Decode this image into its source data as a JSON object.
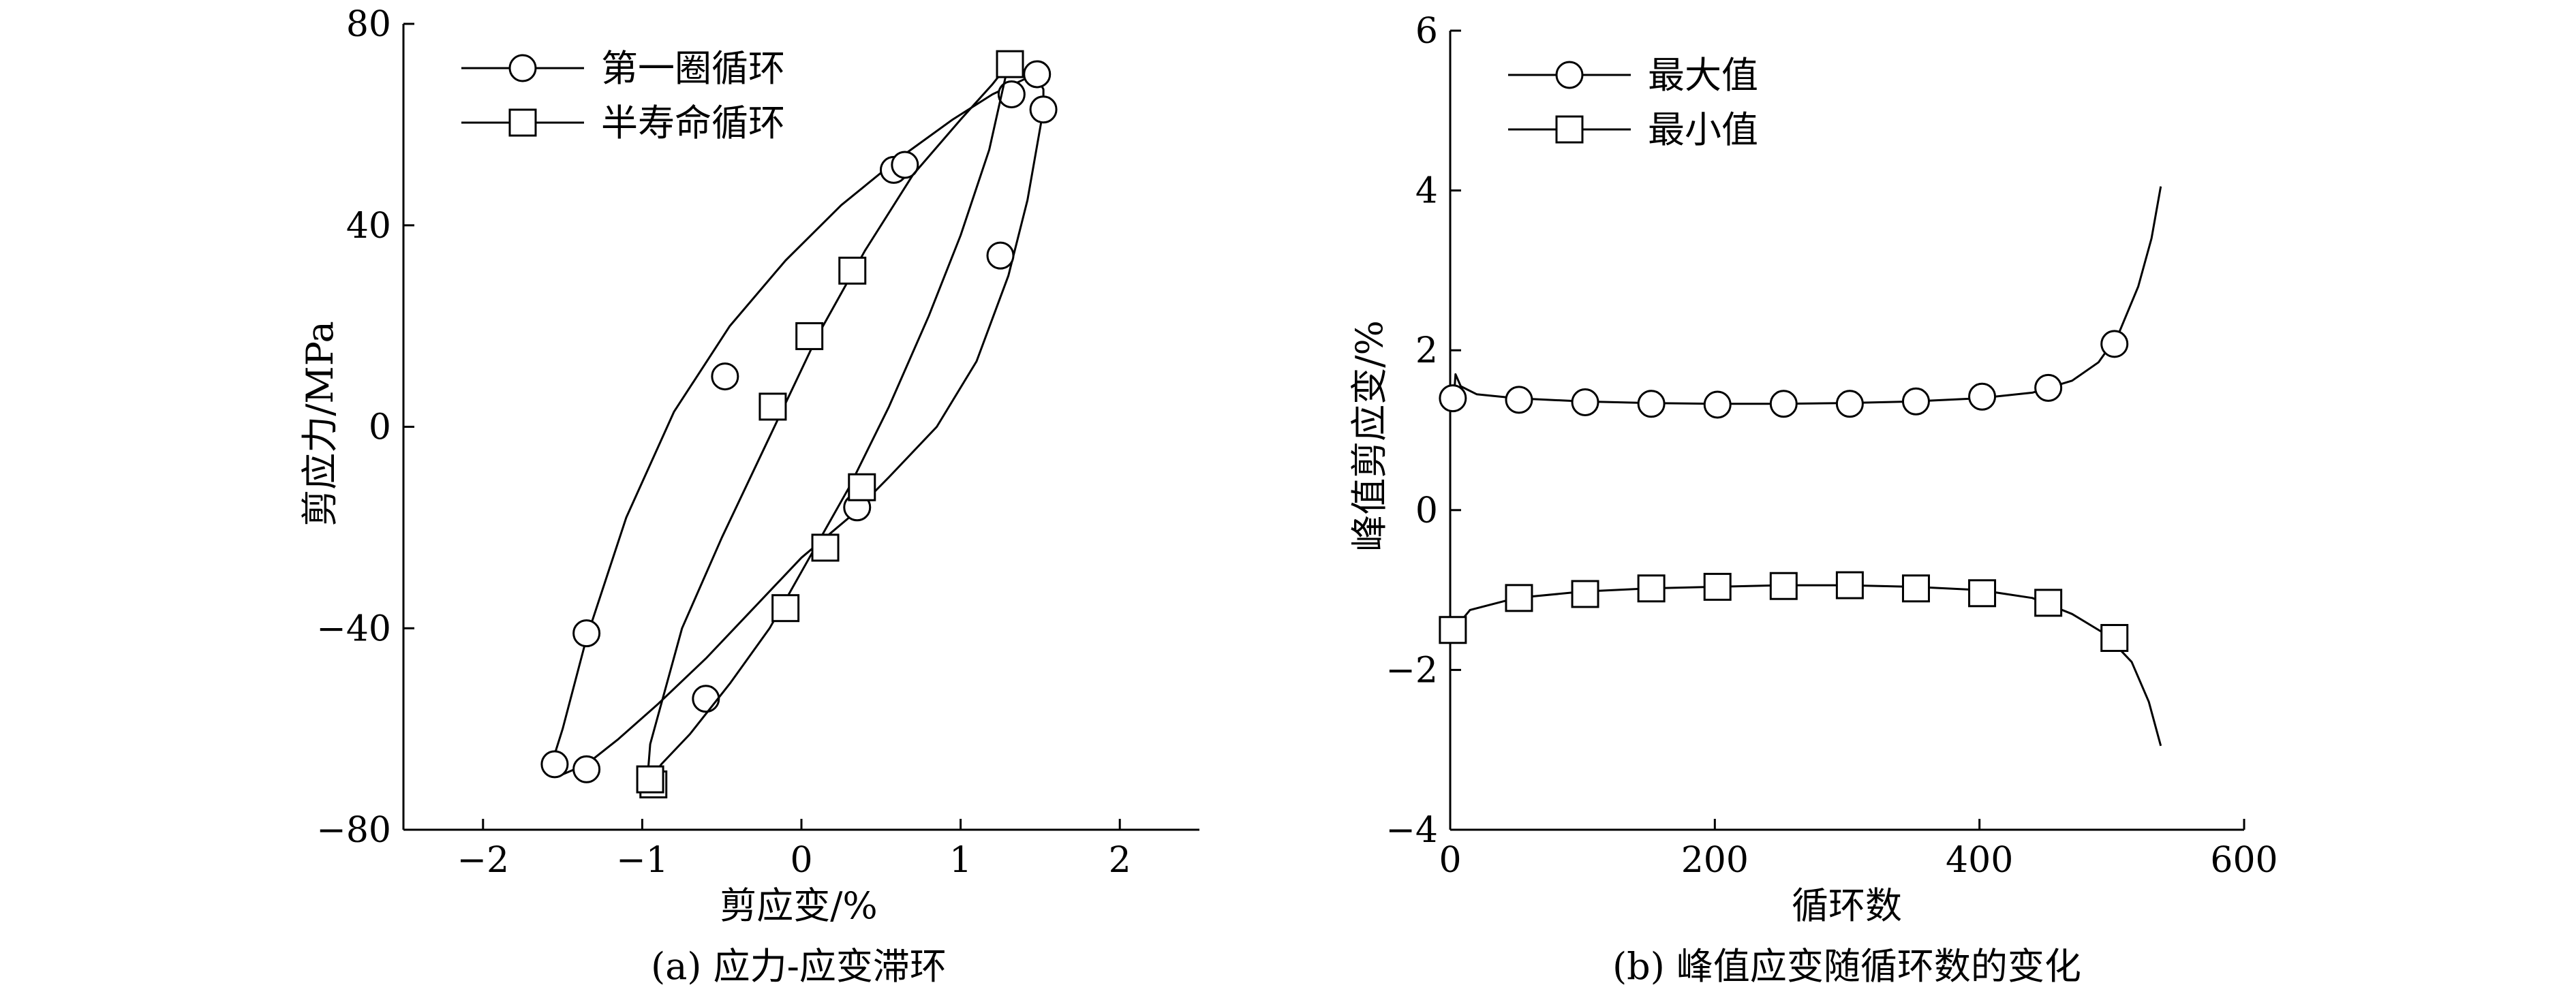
{
  "chart_data": [
    {
      "type": "line",
      "caption": "(a) 应力-应变滞环",
      "xlabel": "剪应变/%",
      "ylabel": "剪应力/MPa",
      "xlim": [
        -2.5,
        2.5
      ],
      "ylim": [
        -80,
        80
      ],
      "xticks": [
        -2,
        -1,
        0,
        1,
        2
      ],
      "yticks": [
        -80,
        -40,
        0,
        40,
        80
      ],
      "xtick_labels": [
        "−2",
        "−1",
        "0",
        "1",
        "2"
      ],
      "ytick_labels": [
        "−80",
        "−40",
        "0",
        "40",
        "80"
      ],
      "legend_position": "top-left",
      "series": [
        {
          "name": "第一圈循环",
          "marker": "circle",
          "curve": [
            [
              1.52,
              63
            ],
            [
              1.42,
              45
            ],
            [
              1.3,
              30
            ],
            [
              1.1,
              13
            ],
            [
              0.85,
              0
            ],
            [
              0.55,
              -10
            ],
            [
              0.3,
              -18
            ],
            [
              0.0,
              -26
            ],
            [
              -0.3,
              -36
            ],
            [
              -0.6,
              -46
            ],
            [
              -0.9,
              -55
            ],
            [
              -1.15,
              -62
            ],
            [
              -1.35,
              -67
            ],
            [
              -1.5,
              -69
            ],
            [
              -1.56,
              -66
            ],
            [
              -1.5,
              -60
            ],
            [
              -1.35,
              -42
            ],
            [
              -1.1,
              -18
            ],
            [
              -0.8,
              3
            ],
            [
              -0.45,
              20
            ],
            [
              -0.1,
              33
            ],
            [
              0.25,
              44
            ],
            [
              0.6,
              53
            ],
            [
              0.95,
              61
            ],
            [
              1.2,
              66
            ],
            [
              1.4,
              69
            ],
            [
              1.48,
              69.5
            ],
            [
              1.52,
              67
            ],
            [
              1.52,
              63
            ]
          ],
          "markers": [
            [
              1.48,
              70
            ],
            [
              1.52,
              63
            ],
            [
              1.25,
              34
            ],
            [
              0.35,
              -16
            ],
            [
              -0.6,
              -54
            ],
            [
              -1.35,
              -68
            ],
            [
              -1.55,
              -67
            ],
            [
              -1.35,
              -41
            ],
            [
              -0.48,
              10
            ],
            [
              0.58,
              51
            ],
            [
              0.65,
              52
            ],
            [
              1.32,
              66
            ]
          ]
        },
        {
          "name": "半寿命循环",
          "marker": "square",
          "curve": [
            [
              1.3,
              72
            ],
            [
              1.18,
              55
            ],
            [
              1.0,
              38
            ],
            [
              0.8,
              22
            ],
            [
              0.55,
              4
            ],
            [
              0.3,
              -12
            ],
            [
              0.05,
              -26
            ],
            [
              -0.2,
              -40
            ],
            [
              -0.45,
              -51
            ],
            [
              -0.7,
              -61
            ],
            [
              -0.88,
              -67
            ],
            [
              -0.97,
              -71
            ],
            [
              -0.95,
              -63
            ],
            [
              -0.75,
              -40
            ],
            [
              -0.5,
              -22
            ],
            [
              -0.2,
              -2
            ],
            [
              0.1,
              18
            ],
            [
              0.4,
              35
            ],
            [
              0.7,
              50
            ],
            [
              1.0,
              61
            ],
            [
              1.2,
              68
            ],
            [
              1.3,
              72
            ]
          ],
          "markers": [
            [
              1.31,
              72
            ],
            [
              0.38,
              -12
            ],
            [
              0.15,
              -24
            ],
            [
              -0.1,
              -36
            ],
            [
              -0.93,
              -71
            ],
            [
              -0.95,
              -70
            ],
            [
              -0.18,
              4
            ],
            [
              0.05,
              18
            ],
            [
              0.32,
              31
            ]
          ]
        }
      ]
    },
    {
      "type": "line",
      "caption": "(b) 峰值应变随循环数的变化",
      "xlabel": "循环数",
      "ylabel": "峰值剪应变/%",
      "xlim": [
        0,
        600
      ],
      "ylim": [
        -4,
        6
      ],
      "xticks": [
        0,
        200,
        400,
        600
      ],
      "yticks": [
        -4,
        -2,
        0,
        2,
        4,
        6
      ],
      "xtick_labels": [
        "0",
        "200",
        "400",
        "600"
      ],
      "ytick_labels": [
        "−4",
        "−2",
        "0",
        "2",
        "4",
        "6"
      ],
      "legend_position": "top-left",
      "series": [
        {
          "name": "最大值",
          "marker": "circle",
          "curve": [
            [
              3,
              1.45
            ],
            [
              4,
              1.7
            ],
            [
              8,
              1.55
            ],
            [
              20,
              1.45
            ],
            [
              50,
              1.4
            ],
            [
              100,
              1.36
            ],
            [
              150,
              1.34
            ],
            [
              200,
              1.33
            ],
            [
              250,
              1.33
            ],
            [
              300,
              1.34
            ],
            [
              350,
              1.36
            ],
            [
              400,
              1.4
            ],
            [
              440,
              1.47
            ],
            [
              470,
              1.62
            ],
            [
              490,
              1.85
            ],
            [
              505,
              2.2
            ],
            [
              520,
              2.8
            ],
            [
              530,
              3.4
            ],
            [
              537,
              4.05
            ]
          ],
          "markers": [
            [
              2,
              1.4
            ],
            [
              52,
              1.38
            ],
            [
              102,
              1.35
            ],
            [
              152,
              1.33
            ],
            [
              202,
              1.32
            ],
            [
              252,
              1.33
            ],
            [
              302,
              1.33
            ],
            [
              352,
              1.36
            ],
            [
              402,
              1.42
            ],
            [
              452,
              1.53
            ],
            [
              502,
              2.08
            ]
          ]
        },
        {
          "name": "最小值",
          "marker": "square",
          "curve": [
            [
              3,
              -1.55
            ],
            [
              5,
              -1.45
            ],
            [
              15,
              -1.25
            ],
            [
              50,
              -1.1
            ],
            [
              100,
              -1.02
            ],
            [
              150,
              -0.98
            ],
            [
              200,
              -0.96
            ],
            [
              250,
              -0.94
            ],
            [
              300,
              -0.94
            ],
            [
              350,
              -0.96
            ],
            [
              400,
              -1.0
            ],
            [
              440,
              -1.1
            ],
            [
              470,
              -1.3
            ],
            [
              495,
              -1.55
            ],
            [
              515,
              -1.9
            ],
            [
              528,
              -2.4
            ],
            [
              537,
              -2.95
            ]
          ],
          "markers": [
            [
              2,
              -1.5
            ],
            [
              52,
              -1.1
            ],
            [
              102,
              -1.05
            ],
            [
              152,
              -0.98
            ],
            [
              202,
              -0.96
            ],
            [
              252,
              -0.95
            ],
            [
              302,
              -0.94
            ],
            [
              352,
              -0.98
            ],
            [
              402,
              -1.04
            ],
            [
              452,
              -1.16
            ],
            [
              502,
              -1.6
            ]
          ]
        }
      ]
    }
  ]
}
